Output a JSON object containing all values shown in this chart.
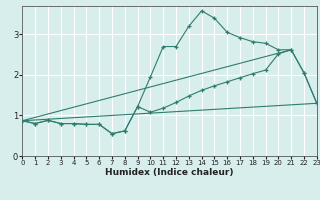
{
  "title": "",
  "xlabel": "Humidex (Indice chaleur)",
  "xlim": [
    0,
    23
  ],
  "ylim": [
    0,
    3.7
  ],
  "yticks": [
    0,
    1,
    2,
    3
  ],
  "xticks": [
    0,
    1,
    2,
    3,
    4,
    5,
    6,
    7,
    8,
    9,
    10,
    11,
    12,
    13,
    14,
    15,
    16,
    17,
    18,
    19,
    20,
    21,
    22,
    23
  ],
  "bg_color": "#d8eeed",
  "grid_color": "#ffffff",
  "line_color": "#2e7d6e",
  "line1_x": [
    0,
    1,
    2,
    3,
    4,
    5,
    6,
    7,
    8,
    9,
    10,
    11,
    12,
    13,
    14,
    15,
    16,
    17,
    18,
    19,
    20,
    21,
    22,
    23
  ],
  "line1_y": [
    0.87,
    0.8,
    0.88,
    0.8,
    0.8,
    0.78,
    0.78,
    0.55,
    0.62,
    1.22,
    1.95,
    2.7,
    2.7,
    3.2,
    3.58,
    3.4,
    3.05,
    2.92,
    2.82,
    2.78,
    2.62,
    2.62,
    2.05,
    1.3
  ],
  "line2_x": [
    0,
    1,
    2,
    3,
    4,
    5,
    6,
    7,
    8,
    9,
    10,
    11,
    12,
    13,
    14,
    15,
    16,
    17,
    18,
    19,
    20,
    21,
    22,
    23
  ],
  "line2_y": [
    0.87,
    0.8,
    0.88,
    0.8,
    0.8,
    0.78,
    0.78,
    0.55,
    0.62,
    1.22,
    1.08,
    1.18,
    1.32,
    1.48,
    1.62,
    1.73,
    1.83,
    1.93,
    2.03,
    2.12,
    2.52,
    2.62,
    2.05,
    1.3
  ],
  "line3_x": [
    0,
    23
  ],
  "line3_y": [
    0.87,
    1.3
  ],
  "line4_x": [
    0,
    21
  ],
  "line4_y": [
    0.87,
    2.62
  ]
}
